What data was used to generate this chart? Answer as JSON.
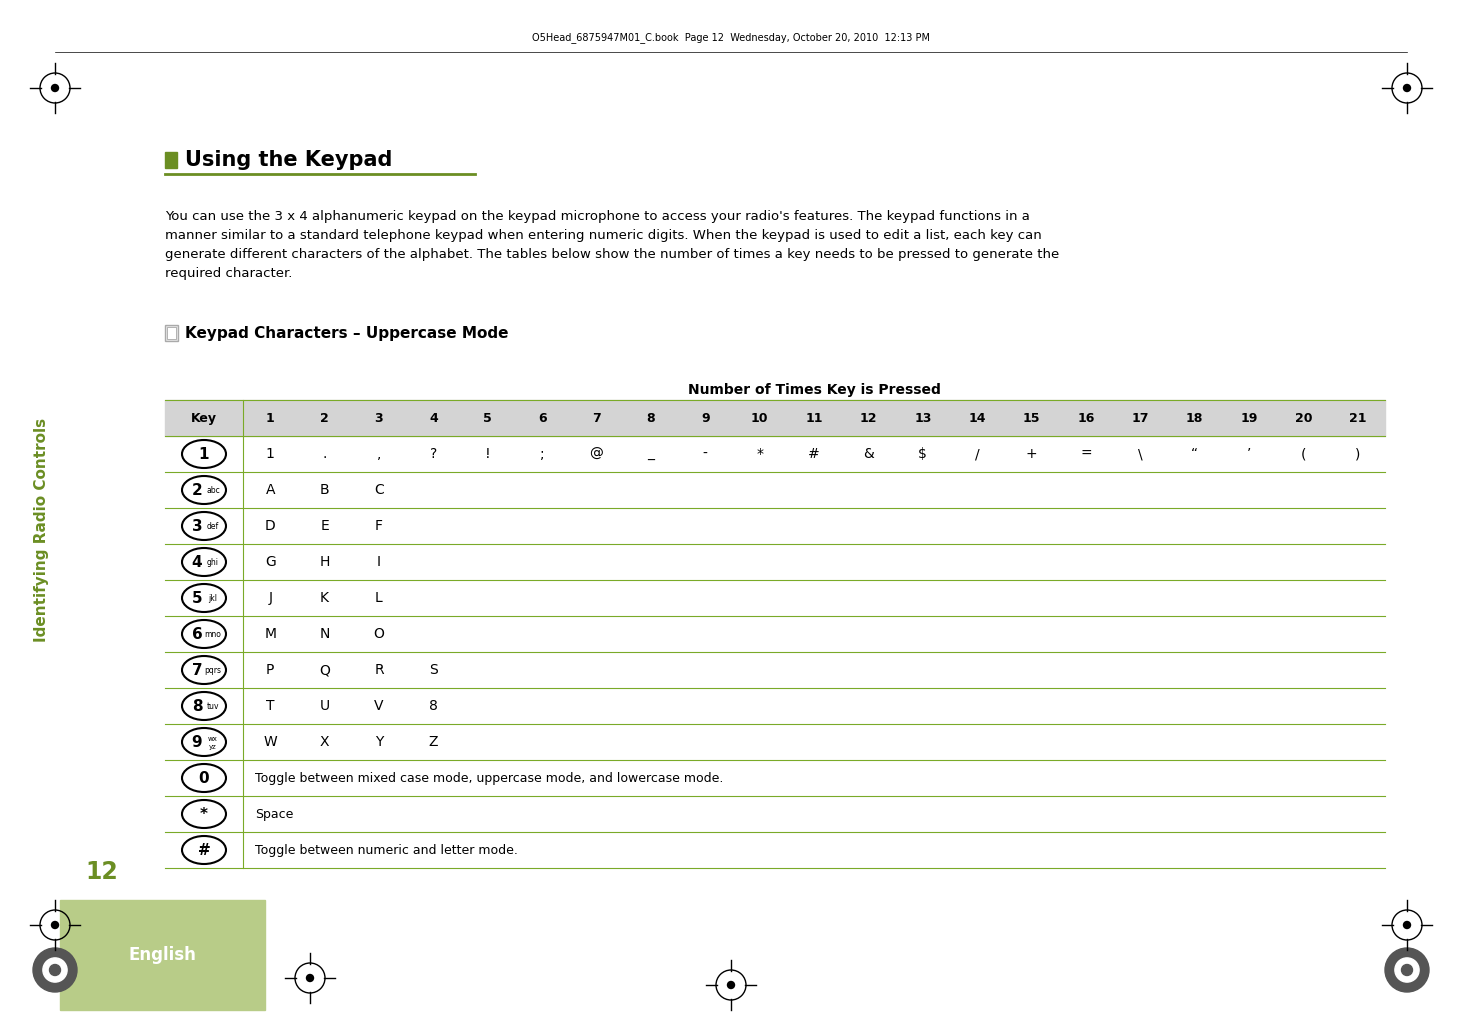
{
  "page_header": "O5Head_6875947M01_C.book  Page 12  Wednesday, October 20, 2010  12:13 PM",
  "section_title": "Using the Keypad",
  "body_lines": [
    "You can use the 3 x 4 alphanumeric keypad on the keypad microphone to access your radio's features. The keypad functions in a",
    "manner similar to a standard telephone keypad when entering numeric digits. When the keypad is used to edit a list, each key can",
    "generate different characters of the alphabet. The tables below show the number of times a key needs to be pressed to generate the",
    "required character."
  ],
  "table_title": "Keypad Characters – Uppercase Mode",
  "col_header": "Number of Times Key is Pressed",
  "col_numbers": [
    "Key",
    "1",
    "2",
    "3",
    "4",
    "5",
    "6",
    "7",
    "8",
    "9",
    "10",
    "11",
    "12",
    "13",
    "14",
    "15",
    "16",
    "17",
    "18",
    "19",
    "20",
    "21"
  ],
  "rows": [
    {
      "key": "1",
      "key_sub": "",
      "chars": [
        "1",
        ".",
        ",",
        "?",
        "!",
        ";",
        "@",
        "_",
        "-",
        "*",
        "#",
        "&",
        "$",
        "/",
        "+",
        "=",
        "\\",
        "“",
        "’",
        "(",
        ")"
      ]
    },
    {
      "key": "2",
      "key_sub": "abc",
      "chars": [
        "A",
        "B",
        "C",
        "",
        "",
        "",
        "",
        "",
        "",
        "",
        "",
        "",
        "",
        "",
        "",
        "",
        "",
        "",
        "",
        "",
        ""
      ]
    },
    {
      "key": "3",
      "key_sub": "def",
      "chars": [
        "D",
        "E",
        "F",
        "",
        "",
        "",
        "",
        "",
        "",
        "",
        "",
        "",
        "",
        "",
        "",
        "",
        "",
        "",
        "",
        "",
        ""
      ]
    },
    {
      "key": "4",
      "key_sub": "ghi",
      "chars": [
        "G",
        "H",
        "I",
        "",
        "",
        "",
        "",
        "",
        "",
        "",
        "",
        "",
        "",
        "",
        "",
        "",
        "",
        "",
        "",
        "",
        ""
      ]
    },
    {
      "key": "5",
      "key_sub": "jkl",
      "chars": [
        "J",
        "K",
        "L",
        "",
        "",
        "",
        "",
        "",
        "",
        "",
        "",
        "",
        "",
        "",
        "",
        "",
        "",
        "",
        "",
        "",
        ""
      ]
    },
    {
      "key": "6",
      "key_sub": "mno",
      "chars": [
        "M",
        "N",
        "O",
        "",
        "",
        "",
        "",
        "",
        "",
        "",
        "",
        "",
        "",
        "",
        "",
        "",
        "",
        "",
        "",
        "",
        ""
      ]
    },
    {
      "key": "7",
      "key_sub": "pqrs",
      "chars": [
        "P",
        "Q",
        "R",
        "S",
        "",
        "",
        "",
        "",
        "",
        "",
        "",
        "",
        "",
        "",
        "",
        "",
        "",
        "",
        "",
        "",
        ""
      ]
    },
    {
      "key": "8",
      "key_sub": "tuv",
      "chars": [
        "T",
        "U",
        "V",
        "8",
        "",
        "",
        "",
        "",
        "",
        "",
        "",
        "",
        "",
        "",
        "",
        "",
        "",
        "",
        "",
        "",
        ""
      ]
    },
    {
      "key": "9",
      "key_sub": "wx\nyz",
      "chars": [
        "W",
        "X",
        "Y",
        "Z",
        "",
        "",
        "",
        "",
        "",
        "",
        "",
        "",
        "",
        "",
        "",
        "",
        "",
        "",
        "",
        "",
        ""
      ]
    },
    {
      "key": "0",
      "key_sub": "",
      "chars": [
        "Toggle between mixed case mode, uppercase mode, and lowercase mode."
      ]
    },
    {
      "key": "*",
      "key_sub": "",
      "chars": [
        "Space"
      ]
    },
    {
      "key": "#",
      "key_sub": "",
      "chars": [
        "Toggle between numeric and letter mode."
      ]
    }
  ],
  "sidebar_text": "Identifying Radio Controls",
  "page_number": "12",
  "tab_label": "English",
  "green_color": "#6b8e23",
  "green_light": "#b8cc88",
  "line_color": "#7aaa28",
  "bg_color": "#ffffff"
}
